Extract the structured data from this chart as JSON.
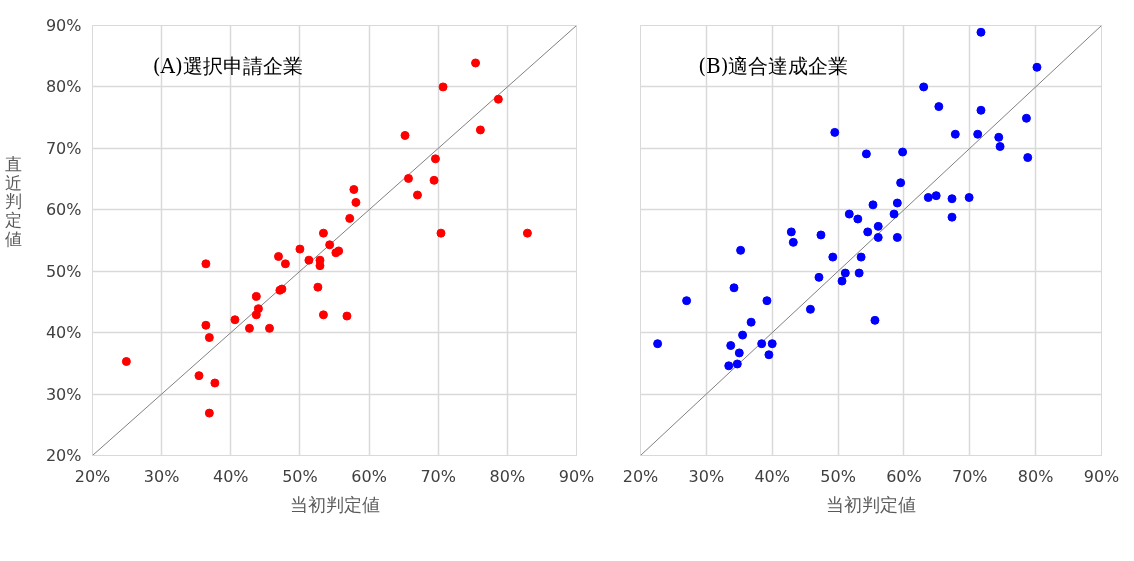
{
  "chart_data": [
    {
      "type": "scatter",
      "title": "(A)選択申請企業",
      "xlabel": "当初判定値",
      "ylabel": "直近判定値",
      "xlim": [
        20,
        90
      ],
      "ylim": [
        20,
        90
      ],
      "xticks": [
        {
          "value": 20,
          "label": "20%"
        },
        {
          "value": 30,
          "label": "30%"
        },
        {
          "value": 40,
          "label": "40%"
        },
        {
          "value": 50,
          "label": "50%"
        },
        {
          "value": 60,
          "label": "60%"
        },
        {
          "value": 70,
          "label": "70%"
        },
        {
          "value": 80,
          "label": "80%"
        },
        {
          "value": 90,
          "label": "90%"
        }
      ],
      "yticks": [
        {
          "value": 20,
          "label": "20%"
        },
        {
          "value": 30,
          "label": "30%"
        },
        {
          "value": 40,
          "label": "40%"
        },
        {
          "value": 50,
          "label": "50%"
        },
        {
          "value": 60,
          "label": "60%"
        },
        {
          "value": 70,
          "label": "70%"
        },
        {
          "value": 80,
          "label": "80%"
        },
        {
          "value": 90,
          "label": "90%"
        }
      ],
      "grid": true,
      "marker": "circle",
      "series": [
        {
          "type": "line",
          "marker": "none",
          "color": "#808080",
          "x": [
            20,
            90
          ],
          "values": [
            20,
            90
          ]
        },
        {
          "color": "#ff0000",
          "x": [
            75.4,
            70.7,
            78.7,
            76.1,
            65.2,
            69.6,
            65.7,
            69.4,
            67.0,
            70.4,
            82.9,
            57.8,
            58.1,
            57.2,
            53.4,
            54.3,
            50.0,
            46.9,
            47.9,
            36.4,
            51.3,
            52.9,
            52.9,
            55.2,
            55.6,
            47.1,
            47.4,
            52.6,
            43.7,
            44.0,
            43.7,
            40.6,
            53.4,
            56.8,
            36.4,
            42.7,
            45.6,
            36.9,
            24.9,
            35.4,
            37.7,
            36.9
          ],
          "values": [
            83.9,
            80.0,
            78.0,
            73.0,
            72.1,
            68.3,
            65.1,
            64.8,
            62.4,
            56.2,
            56.2,
            63.3,
            61.2,
            58.6,
            56.2,
            54.3,
            53.6,
            52.4,
            51.2,
            51.2,
            51.8,
            51.8,
            50.9,
            53.0,
            53.3,
            46.9,
            47.1,
            47.4,
            45.9,
            43.9,
            42.9,
            42.1,
            42.9,
            42.7,
            41.2,
            40.7,
            40.7,
            39.2,
            35.3,
            33.0,
            31.8,
            26.9
          ]
        }
      ]
    },
    {
      "type": "scatter",
      "title": "(B)適合達成企業",
      "xlabel": "当初判定値",
      "xlim": [
        20,
        90
      ],
      "ylim": [
        20,
        90
      ],
      "tick_labels": "x",
      "xticks": [
        {
          "value": 20,
          "label": "20%"
        },
        {
          "value": 30,
          "label": "30%"
        },
        {
          "value": 40,
          "label": "40%"
        },
        {
          "value": 50,
          "label": "50%"
        },
        {
          "value": 60,
          "label": "60%"
        },
        {
          "value": 70,
          "label": "70%"
        },
        {
          "value": 80,
          "label": "80%"
        },
        {
          "value": 90,
          "label": "90%"
        }
      ],
      "yticks": [
        20,
        30,
        40,
        50,
        60,
        70,
        80,
        90
      ],
      "grid": true,
      "marker": "circle",
      "series": [
        {
          "type": "line",
          "marker": "none",
          "color": "#808080",
          "x": [
            20,
            90
          ],
          "values": [
            20,
            90
          ]
        },
        {
          "color": "#0000ff",
          "x": [
            71.7,
            80.2,
            63.0,
            65.3,
            71.7,
            78.6,
            49.5,
            67.8,
            71.2,
            74.4,
            74.6,
            78.8,
            54.3,
            59.8,
            59.5,
            63.7,
            64.9,
            67.3,
            69.9,
            67.3,
            55.3,
            59.0,
            51.7,
            53.0,
            58.5,
            56.1,
            54.5,
            56.1,
            59.0,
            42.9,
            43.2,
            47.4,
            35.2,
            49.2,
            53.5,
            47.1,
            51.1,
            53.2,
            50.6,
            34.2,
            27.0,
            39.2,
            45.8,
            55.6,
            36.8,
            35.5,
            22.6,
            33.7,
            38.4,
            40.0,
            35.0,
            39.5,
            33.4,
            34.7
          ],
          "values": [
            88.9,
            83.2,
            80.0,
            76.8,
            76.2,
            74.9,
            72.6,
            72.3,
            72.3,
            71.8,
            70.3,
            68.5,
            69.1,
            69.4,
            64.4,
            62.0,
            62.3,
            61.8,
            62.0,
            58.8,
            60.8,
            61.1,
            59.3,
            58.5,
            59.3,
            57.3,
            56.4,
            55.5,
            55.5,
            56.4,
            54.7,
            55.9,
            53.4,
            52.3,
            52.3,
            49.0,
            49.7,
            49.7,
            48.4,
            47.3,
            45.2,
            45.2,
            43.8,
            42.0,
            41.7,
            39.6,
            38.2,
            37.9,
            38.2,
            38.2,
            36.7,
            36.4,
            34.6,
            34.9
          ]
        }
      ]
    }
  ]
}
